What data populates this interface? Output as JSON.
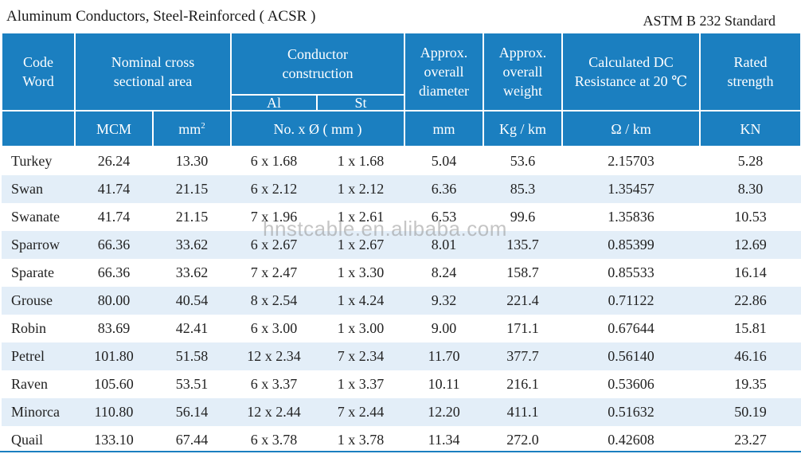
{
  "title": "Aluminum Conductors, Steel-Reinforced ( ACSR )",
  "standard": "ASTM B 232 Standard",
  "watermark": "hnstcable.en.alibaba.com",
  "headers": {
    "code_word": "Code Word",
    "nominal_area": "Nominal cross sectional area",
    "conductor_construction": "Conductor construction",
    "al": "Al",
    "st": "St",
    "diameter": "Approx. overall diameter",
    "weight": "Approx. overall weight",
    "resistance": "Calculated DC Resistance at 20 ℃",
    "strength": "Rated strength"
  },
  "units": {
    "mcm": "MCM",
    "mm2_base": "mm",
    "mm2_exp": "2",
    "construction": "No. x Ø ( mm )",
    "mm": "mm",
    "kgkm": "Kg / km",
    "ohm": "Ω / km",
    "kn": "KN"
  },
  "rows": [
    {
      "code": "Turkey",
      "mcm": "26.24",
      "mm2": "13.30",
      "al": "6 x 1.68",
      "st": "1 x 1.68",
      "dia": "5.04",
      "wt": "53.6",
      "res": "2.15703",
      "str": "5.28"
    },
    {
      "code": "Swan",
      "mcm": "41.74",
      "mm2": "21.15",
      "al": "6 x 2.12",
      "st": "1 x 2.12",
      "dia": "6.36",
      "wt": "85.3",
      "res": "1.35457",
      "str": "8.30"
    },
    {
      "code": "Swanate",
      "mcm": "41.74",
      "mm2": "21.15",
      "al": "7 x 1.96",
      "st": "1 x 2.61",
      "dia": "6.53",
      "wt": "99.6",
      "res": "1.35836",
      "str": "10.53"
    },
    {
      "code": "Sparrow",
      "mcm": "66.36",
      "mm2": "33.62",
      "al": "6 x 2.67",
      "st": "1 x 2.67",
      "dia": "8.01",
      "wt": "135.7",
      "res": "0.85399",
      "str": "12.69"
    },
    {
      "code": "Sparate",
      "mcm": "66.36",
      "mm2": "33.62",
      "al": "7 x 2.47",
      "st": "1 x 3.30",
      "dia": "8.24",
      "wt": "158.7",
      "res": "0.85533",
      "str": "16.14"
    },
    {
      "code": "Grouse",
      "mcm": "80.00",
      "mm2": "40.54",
      "al": "8 x 2.54",
      "st": "1 x 4.24",
      "dia": "9.32",
      "wt": "221.4",
      "res": "0.71122",
      "str": "22.86"
    },
    {
      "code": "Robin",
      "mcm": "83.69",
      "mm2": "42.41",
      "al": "6 x 3.00",
      "st": "1 x 3.00",
      "dia": "9.00",
      "wt": "171.1",
      "res": "0.67644",
      "str": "15.81"
    },
    {
      "code": "Petrel",
      "mcm": "101.80",
      "mm2": "51.58",
      "al": "12 x 2.34",
      "st": "7 x 2.34",
      "dia": "11.70",
      "wt": "377.7",
      "res": "0.56140",
      "str": "46.16"
    },
    {
      "code": "Raven",
      "mcm": "105.60",
      "mm2": "53.51",
      "al": "6 x 3.37",
      "st": "1 x 3.37",
      "dia": "10.11",
      "wt": "216.1",
      "res": "0.53606",
      "str": "19.35"
    },
    {
      "code": "Minorca",
      "mcm": "110.80",
      "mm2": "56.14",
      "al": "12 x 2.44",
      "st": "7 x 2.44",
      "dia": "12.20",
      "wt": "411.1",
      "res": "0.51632",
      "str": "50.19"
    },
    {
      "code": "Quail",
      "mcm": "133.10",
      "mm2": "67.44",
      "al": "6 x 3.78",
      "st": "1 x 3.78",
      "dia": "11.34",
      "wt": "272.0",
      "res": "0.42608",
      "str": "23.27"
    }
  ]
}
